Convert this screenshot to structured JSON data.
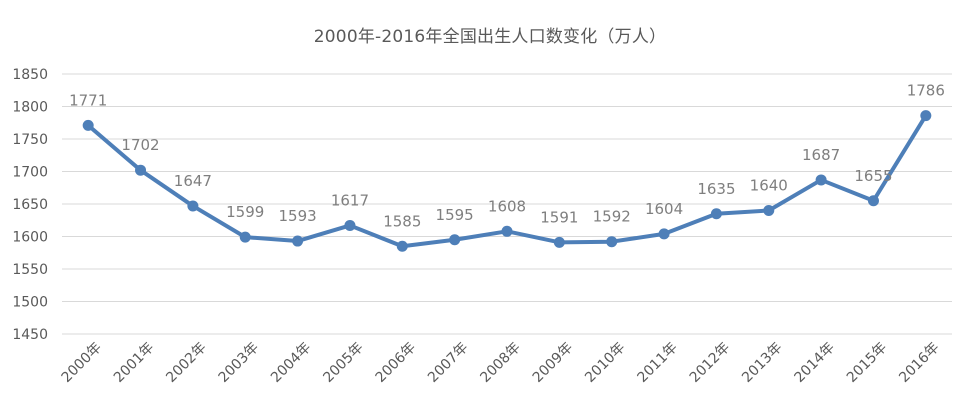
{
  "chart_data": {
    "type": "line",
    "title": "2000年-2016年全国出生人口数变化（万人）",
    "xlabel": "",
    "ylabel": "",
    "categories": [
      "2000年",
      "2001年",
      "2002年",
      "2003年",
      "2004年",
      "2005年",
      "2006年",
      "2007年",
      "2008年",
      "2009年",
      "2010年",
      "2011年",
      "2012年",
      "2013年",
      "2014年",
      "2015年",
      "2016年"
    ],
    "series": [
      {
        "values": [
          1771,
          1702,
          1647,
          1599,
          1593,
          1617,
          1585,
          1595,
          1608,
          1591,
          1592,
          1604,
          1635,
          1640,
          1687,
          1655,
          1786
        ]
      }
    ],
    "ylim": [
      1450,
      1850
    ],
    "yticks": [
      1450,
      1500,
      1550,
      1600,
      1650,
      1700,
      1750,
      1800,
      1850
    ],
    "grid": true,
    "legend": "none",
    "colors": {
      "line": "#4e7fb8",
      "grid": "#d9d9d9",
      "text": "#595959",
      "data_label": "#7f7f7f"
    }
  }
}
